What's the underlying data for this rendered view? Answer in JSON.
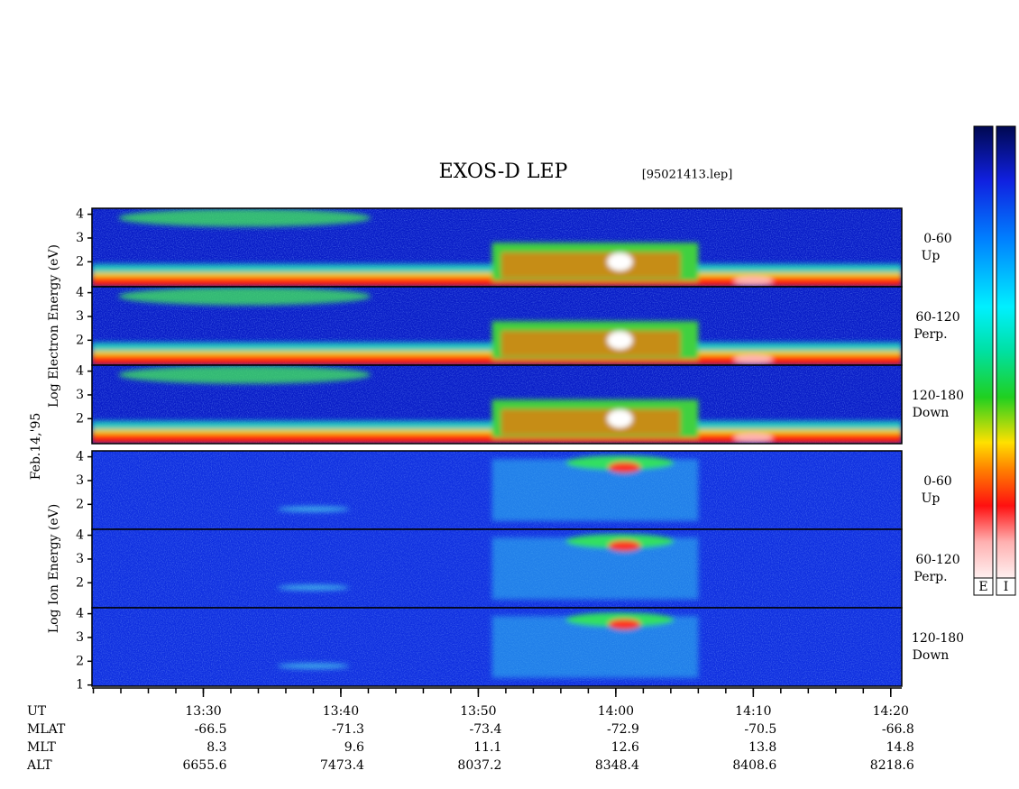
{
  "chart_data": {
    "type": "spectrogram",
    "title": "EXOS-D LEP",
    "file_label": "[95021413.lep]",
    "date_label": "Feb.14,'95",
    "xlim": [
      21.9,
      80.8
    ],
    "xticks": [
      {
        "value": 30,
        "label": "13:30"
      },
      {
        "value": 40,
        "label": "13:40"
      },
      {
        "value": 50,
        "label": "13:50"
      },
      {
        "value": 60,
        "label": "14:00"
      },
      {
        "value": 70,
        "label": "14:10"
      },
      {
        "value": 80,
        "label": "14:20"
      }
    ],
    "xticks_minor": [
      22,
      24,
      26,
      28,
      30,
      32,
      34,
      36,
      38,
      40,
      42,
      44,
      46,
      48,
      50,
      52,
      54,
      56,
      58,
      60,
      62,
      64,
      66,
      68,
      70,
      72,
      74,
      76,
      78,
      80
    ],
    "x_row_label": "UT",
    "groups": [
      {
        "ylabel": "Log Electron Energy (eV)",
        "panels": [
          {
            "pitch": "0-60",
            "direction": "Up",
            "ylim": [
              0.95,
              4.25
            ],
            "yticks": [
              2,
              3,
              4
            ]
          },
          {
            "pitch": "60-120",
            "direction": "Perp.",
            "ylim": [
              0.95,
              4.25
            ],
            "yticks": [
              2,
              3,
              4
            ]
          },
          {
            "pitch": "120-180",
            "direction": "Down",
            "ylim": [
              0.95,
              4.25
            ],
            "yticks": [
              2,
              3,
              4
            ]
          }
        ]
      },
      {
        "ylabel": "Log Ion Energy (eV)",
        "panels": [
          {
            "pitch": "0-60",
            "direction": "Up",
            "ylim": [
              0.95,
              4.25
            ],
            "yticks": [
              2,
              3,
              4
            ]
          },
          {
            "pitch": "60-120",
            "direction": "Perp.",
            "ylim": [
              0.95,
              4.25
            ],
            "yticks": [
              2,
              3,
              4
            ]
          },
          {
            "pitch": "120-180",
            "direction": "Down",
            "ylim": [
              0.95,
              4.25
            ],
            "yticks": [
              1,
              2,
              3,
              4
            ]
          }
        ]
      }
    ],
    "ephemeris": [
      {
        "name": "MLAT",
        "values": [
          -66.5,
          -71.3,
          -73.4,
          -72.9,
          -70.5,
          -66.8
        ]
      },
      {
        "name": "MLT",
        "values": [
          8.3,
          9.6,
          11.1,
          12.6,
          13.8,
          14.8
        ]
      },
      {
        "name": "ALT",
        "values": [
          6655.6,
          7473.4,
          8037.2,
          8348.4,
          8408.6,
          8218.6
        ]
      }
    ],
    "colorbars": [
      "E",
      "I"
    ]
  }
}
